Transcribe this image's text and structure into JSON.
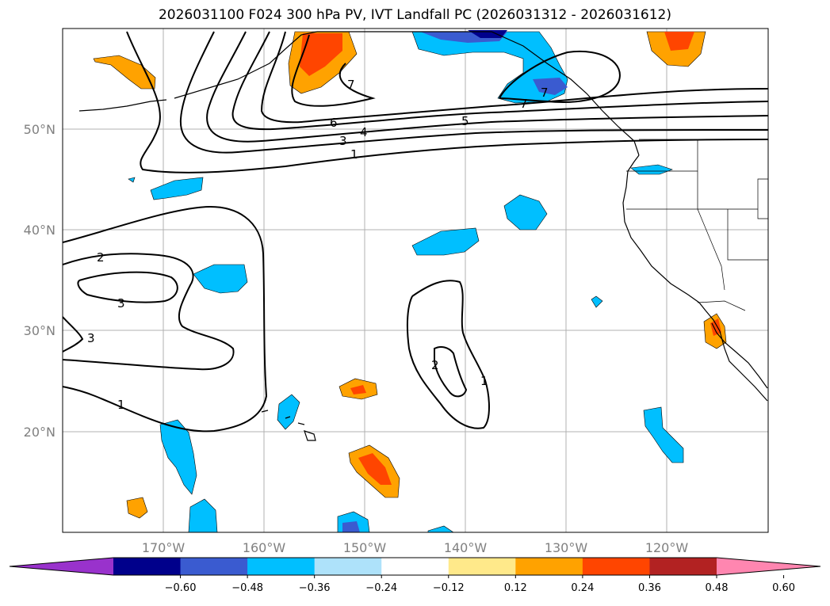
{
  "title": "2026031100 F024 300 hPa PV, IVT Landfall PC (2026031312 - 2026031612)",
  "map": {
    "lon_range": [
      180,
      110
    ],
    "lat_range": [
      10,
      60
    ],
    "lon_ticks": [
      "170°W",
      "160°W",
      "150°W",
      "140°W",
      "130°W",
      "120°W"
    ],
    "lat_ticks": [
      "50°N",
      "40°N",
      "30°N",
      "20°N"
    ],
    "gridlines": true
  },
  "contours": {
    "labels": [
      "7",
      "6",
      "3",
      "4",
      "1",
      "5",
      "7",
      "7",
      "2",
      "3",
      "3",
      "1",
      "2",
      "1"
    ]
  },
  "colorbar": {
    "ticks": [
      "−0.60",
      "−0.48",
      "−0.36",
      "−0.24",
      "−0.12",
      "0.12",
      "0.24",
      "0.36",
      "0.48",
      "0.60"
    ],
    "colors": [
      "#9932cc",
      "#00008b",
      "#3a5bd0",
      "#00bfff",
      "#aee2fa",
      "#ffffff",
      "#ffe98a",
      "#ffa200",
      "#ff4500",
      "#b22222",
      "#ff86b0"
    ]
  }
}
